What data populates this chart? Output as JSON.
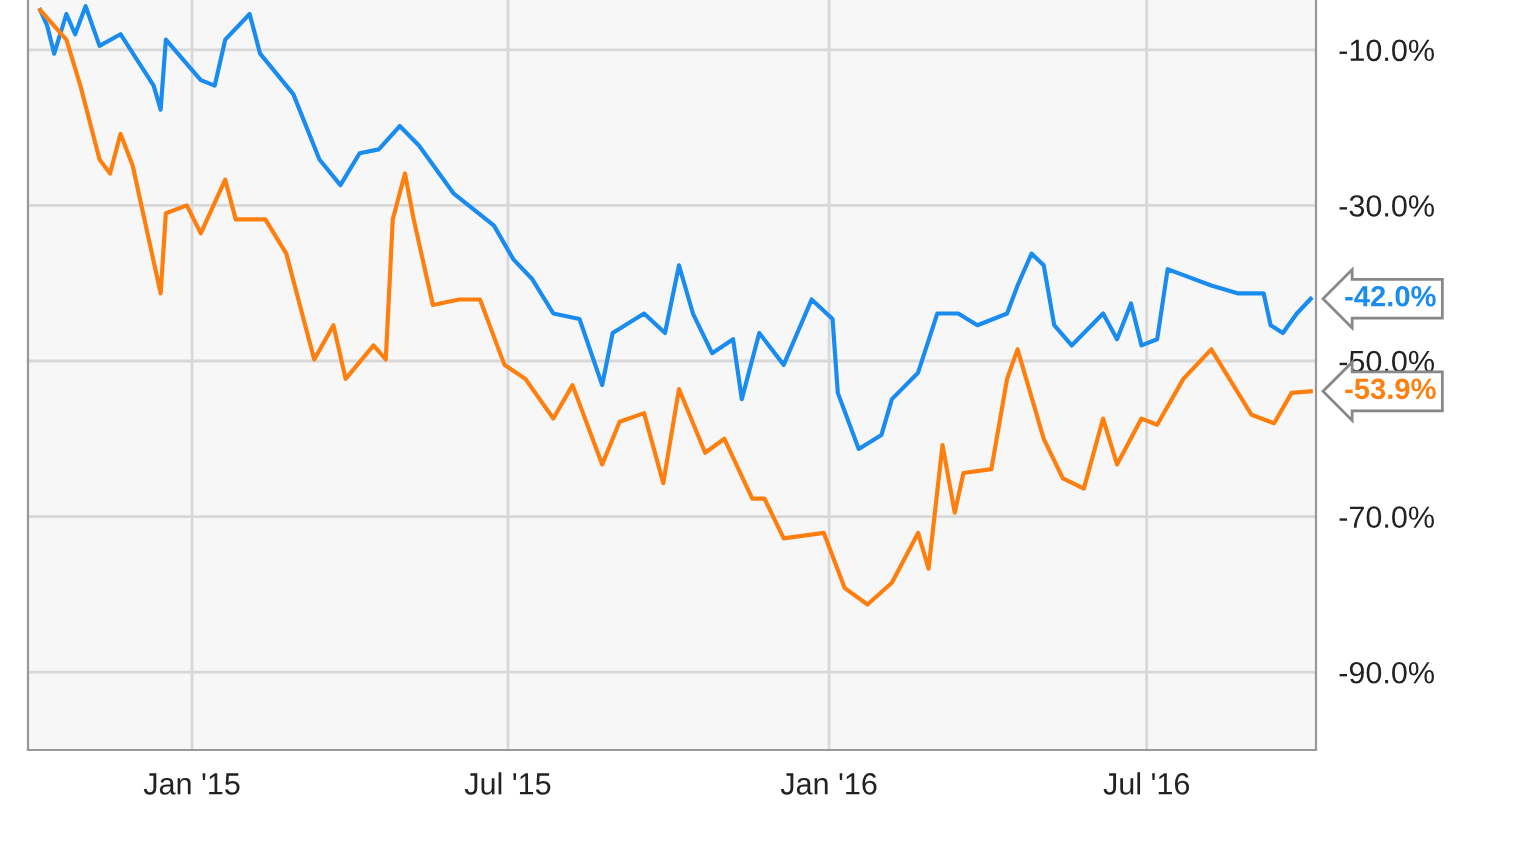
{
  "chart_data": {
    "type": "line",
    "grid": true,
    "marker": "none",
    "line_style": "solid",
    "xlim": [
      "2014-09-29",
      "2016-10-06"
    ],
    "ylim": [
      -100,
      -3.6
    ],
    "xticks": [
      {
        "value": "2015-01-01",
        "label": "Jan '15"
      },
      {
        "value": "2015-07-01",
        "label": "Jul '15"
      },
      {
        "value": "2016-01-01",
        "label": "Jan '16"
      },
      {
        "value": "2016-07-01",
        "label": "Jul '16"
      }
    ],
    "yticks": [
      {
        "value": -10,
        "label": "-10.0%"
      },
      {
        "value": -30,
        "label": "-30.0%"
      },
      {
        "value": -50,
        "label": "-50.0%"
      },
      {
        "value": -70,
        "label": "-70.0%"
      },
      {
        "value": -90,
        "label": "-90.0%"
      }
    ],
    "series": [
      {
        "color": "#1a8cf0",
        "x": [
          "2014-10-06",
          "2014-10-10",
          "2014-10-14",
          "2014-10-21",
          "2014-10-26",
          "2014-11-01",
          "2014-11-09",
          "2014-11-21",
          "2014-12-10",
          "2014-12-14",
          "2014-12-17",
          "2015-01-06",
          "2015-01-14",
          "2015-01-20",
          "2015-02-03",
          "2015-02-09",
          "2015-02-28",
          "2015-03-15",
          "2015-03-27",
          "2015-04-07",
          "2015-04-18",
          "2015-04-30",
          "2015-05-11",
          "2015-05-31",
          "2015-06-23",
          "2015-07-04",
          "2015-07-15",
          "2015-07-27",
          "2015-08-11",
          "2015-08-24",
          "2015-08-30",
          "2015-09-17",
          "2015-09-29",
          "2015-10-07",
          "2015-10-15",
          "2015-10-26",
          "2015-11-07",
          "2015-11-12",
          "2015-11-22",
          "2015-12-06",
          "2015-12-22",
          "2016-01-03",
          "2016-01-06",
          "2016-01-18",
          "2016-01-31",
          "2016-02-06",
          "2016-02-21",
          "2016-03-03",
          "2016-03-15",
          "2016-03-26",
          "2016-04-12",
          "2016-04-18",
          "2016-04-26",
          "2016-05-03",
          "2016-05-09",
          "2016-05-19",
          "2016-06-06",
          "2016-06-14",
          "2016-06-22",
          "2016-06-28",
          "2016-07-07",
          "2016-07-13",
          "2016-07-19",
          "2016-08-07",
          "2016-08-22",
          "2016-09-06",
          "2016-09-10",
          "2016-09-17",
          "2016-09-25",
          "2016-10-03"
        ],
        "values": [
          -4.9,
          -6.9,
          -10.5,
          -5.4,
          -8.0,
          -4.4,
          -9.5,
          -8.0,
          -14.6,
          -17.7,
          -8.7,
          -13.9,
          -14.6,
          -8.7,
          -5.4,
          -10.5,
          -15.7,
          -24.1,
          -27.4,
          -23.3,
          -22.8,
          -19.8,
          -22.3,
          -28.5,
          -32.6,
          -36.9,
          -39.5,
          -43.9,
          -44.6,
          -53.1,
          -46.4,
          -43.9,
          -46.4,
          -37.7,
          -43.9,
          -49.0,
          -47.2,
          -54.9,
          -46.4,
          -50.5,
          -42.1,
          -44.6,
          -54.1,
          -61.3,
          -59.5,
          -54.9,
          -51.5,
          -43.9,
          -43.9,
          -45.4,
          -43.9,
          -40.3,
          -36.2,
          -37.7,
          -45.4,
          -48.0,
          -43.9,
          -47.2,
          -42.6,
          -48.0,
          -47.2,
          -38.2,
          -38.7,
          -40.3,
          -41.3,
          -41.3,
          -45.4,
          -46.4,
          -43.9,
          -42.0
        ],
        "value_labels": [
          null,
          null,
          null,
          null,
          null,
          null,
          null,
          null,
          null,
          null,
          null,
          null,
          null,
          null,
          null,
          null,
          null,
          null,
          null,
          null,
          null,
          null,
          null,
          null,
          null,
          null,
          null,
          null,
          null,
          null,
          null,
          null,
          null,
          null,
          null,
          null,
          null,
          null,
          null,
          null,
          null,
          null,
          null,
          null,
          null,
          null,
          null,
          null,
          null,
          null,
          null,
          null,
          null,
          null,
          null,
          null,
          null,
          null,
          null,
          null,
          null,
          null,
          null,
          null,
          null,
          null,
          null,
          null,
          null,
          "-42.0%"
        ]
      },
      {
        "color": "#ff7f0e",
        "x": [
          "2014-10-06",
          "2014-10-21",
          "2014-10-29",
          "2014-11-09",
          "2014-11-15",
          "2014-11-21",
          "2014-11-28",
          "2014-12-14",
          "2014-12-17",
          "2014-12-29",
          "2015-01-06",
          "2015-01-20",
          "2015-01-26",
          "2015-02-12",
          "2015-02-24",
          "2015-03-12",
          "2015-03-23",
          "2015-03-30",
          "2015-04-15",
          "2015-04-22",
          "2015-04-26",
          "2015-05-03",
          "2015-05-08",
          "2015-05-19",
          "2015-06-03",
          "2015-06-15",
          "2015-06-29",
          "2015-07-11",
          "2015-07-27",
          "2015-08-07",
          "2015-08-24",
          "2015-09-03",
          "2015-09-17",
          "2015-09-28",
          "2015-10-07",
          "2015-10-22",
          "2015-11-02",
          "2015-11-18",
          "2015-11-25",
          "2015-12-06",
          "2015-12-29",
          "2016-01-10",
          "2016-01-23",
          "2016-02-06",
          "2016-02-21",
          "2016-02-27",
          "2016-03-06",
          "2016-03-13",
          "2016-03-18",
          "2016-04-03",
          "2016-04-12",
          "2016-04-18",
          "2016-05-03",
          "2016-05-14",
          "2016-05-26",
          "2016-06-06",
          "2016-06-14",
          "2016-06-28",
          "2016-07-07",
          "2016-07-22",
          "2016-08-07",
          "2016-08-30",
          "2016-09-12",
          "2016-09-22",
          "2016-10-03"
        ],
        "values": [
          -4.9,
          -8.7,
          -14.6,
          -24.1,
          -25.9,
          -20.8,
          -24.9,
          -41.3,
          -31.0,
          -30.0,
          -33.6,
          -26.7,
          -31.8,
          -31.8,
          -36.2,
          -49.8,
          -45.4,
          -52.3,
          -48.0,
          -49.8,
          -31.8,
          -25.9,
          -31.8,
          -42.8,
          -42.1,
          -42.1,
          -50.5,
          -52.3,
          -57.4,
          -53.1,
          -63.3,
          -57.8,
          -56.7,
          -65.7,
          -53.6,
          -61.8,
          -60.0,
          -67.7,
          -67.7,
          -72.8,
          -72.1,
          -79.2,
          -81.3,
          -78.5,
          -72.1,
          -76.7,
          -60.8,
          -69.5,
          -64.4,
          -63.9,
          -52.3,
          -48.5,
          -60.0,
          -65.1,
          -66.4,
          -57.4,
          -63.3,
          -57.4,
          -58.2,
          -52.3,
          -48.5,
          -56.9,
          -58.0,
          -54.1,
          -53.9
        ],
        "value_labels": [
          null,
          null,
          null,
          null,
          null,
          null,
          null,
          null,
          null,
          null,
          null,
          null,
          null,
          null,
          null,
          null,
          null,
          null,
          null,
          null,
          null,
          null,
          null,
          null,
          null,
          null,
          null,
          null,
          null,
          null,
          null,
          null,
          null,
          null,
          null,
          null,
          null,
          null,
          null,
          null,
          null,
          null,
          null,
          null,
          null,
          null,
          null,
          null,
          null,
          null,
          null,
          null,
          null,
          null,
          null,
          null,
          null,
          null,
          null,
          null,
          null,
          null,
          null,
          null,
          "-53.9%"
        ]
      }
    ]
  }
}
